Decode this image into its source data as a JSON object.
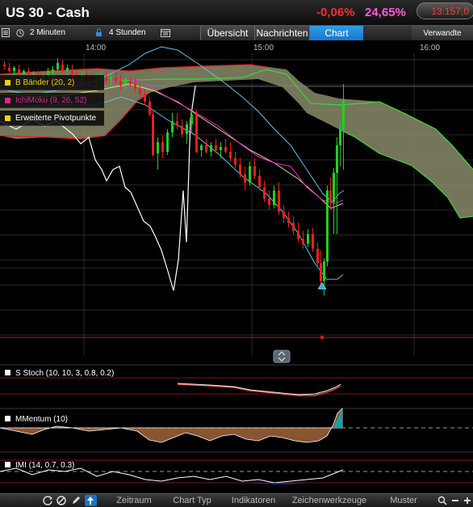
{
  "header": {
    "instrument": "US 30 - Cash",
    "change": "-0,06%",
    "change_pct2": "24,65%",
    "price": "13.157,0"
  },
  "toolbar": {
    "interval": "2 Minuten",
    "range": "4 Stunden",
    "tabs": [
      "Übersicht",
      "Nachrichten",
      "Chart"
    ],
    "active_tab": "Chart",
    "manage_label": "Verwandte"
  },
  "time_axis": {
    "labels": [
      "14:00",
      "15:00",
      "16:00"
    ]
  },
  "legend": [
    {
      "label": "B Bänder (20, 2)",
      "color": "#f0d000"
    },
    {
      "label": "IchiMoku (9, 26, 52)",
      "color": "#e020a0"
    },
    {
      "label": "Erweiterte Pivotpunkte",
      "color": "#f0d000"
    }
  ],
  "panels": {
    "stoch": "S Stoch (10, 10, 3, 0.8, 0.2)",
    "momentum": "MMentum (10)",
    "imi": "IMI (14, 0.7, 0.3)"
  },
  "bottom_bar": {
    "buttons": [
      "Zeitraum",
      "Chart Typ",
      "Indikatoren",
      "Zeichenwerkzeuge",
      "Muster"
    ],
    "icons": [
      "refresh-icon",
      "no-icon",
      "pencil-icon",
      "cursor-icon",
      "zoom-icon",
      "zoom-out-icon",
      "zoom-in-icon"
    ]
  },
  "colors": {
    "up": "#22d022",
    "down": "#e82020",
    "cloud": "#8a8a6a",
    "accent": "#1a73c8"
  }
}
